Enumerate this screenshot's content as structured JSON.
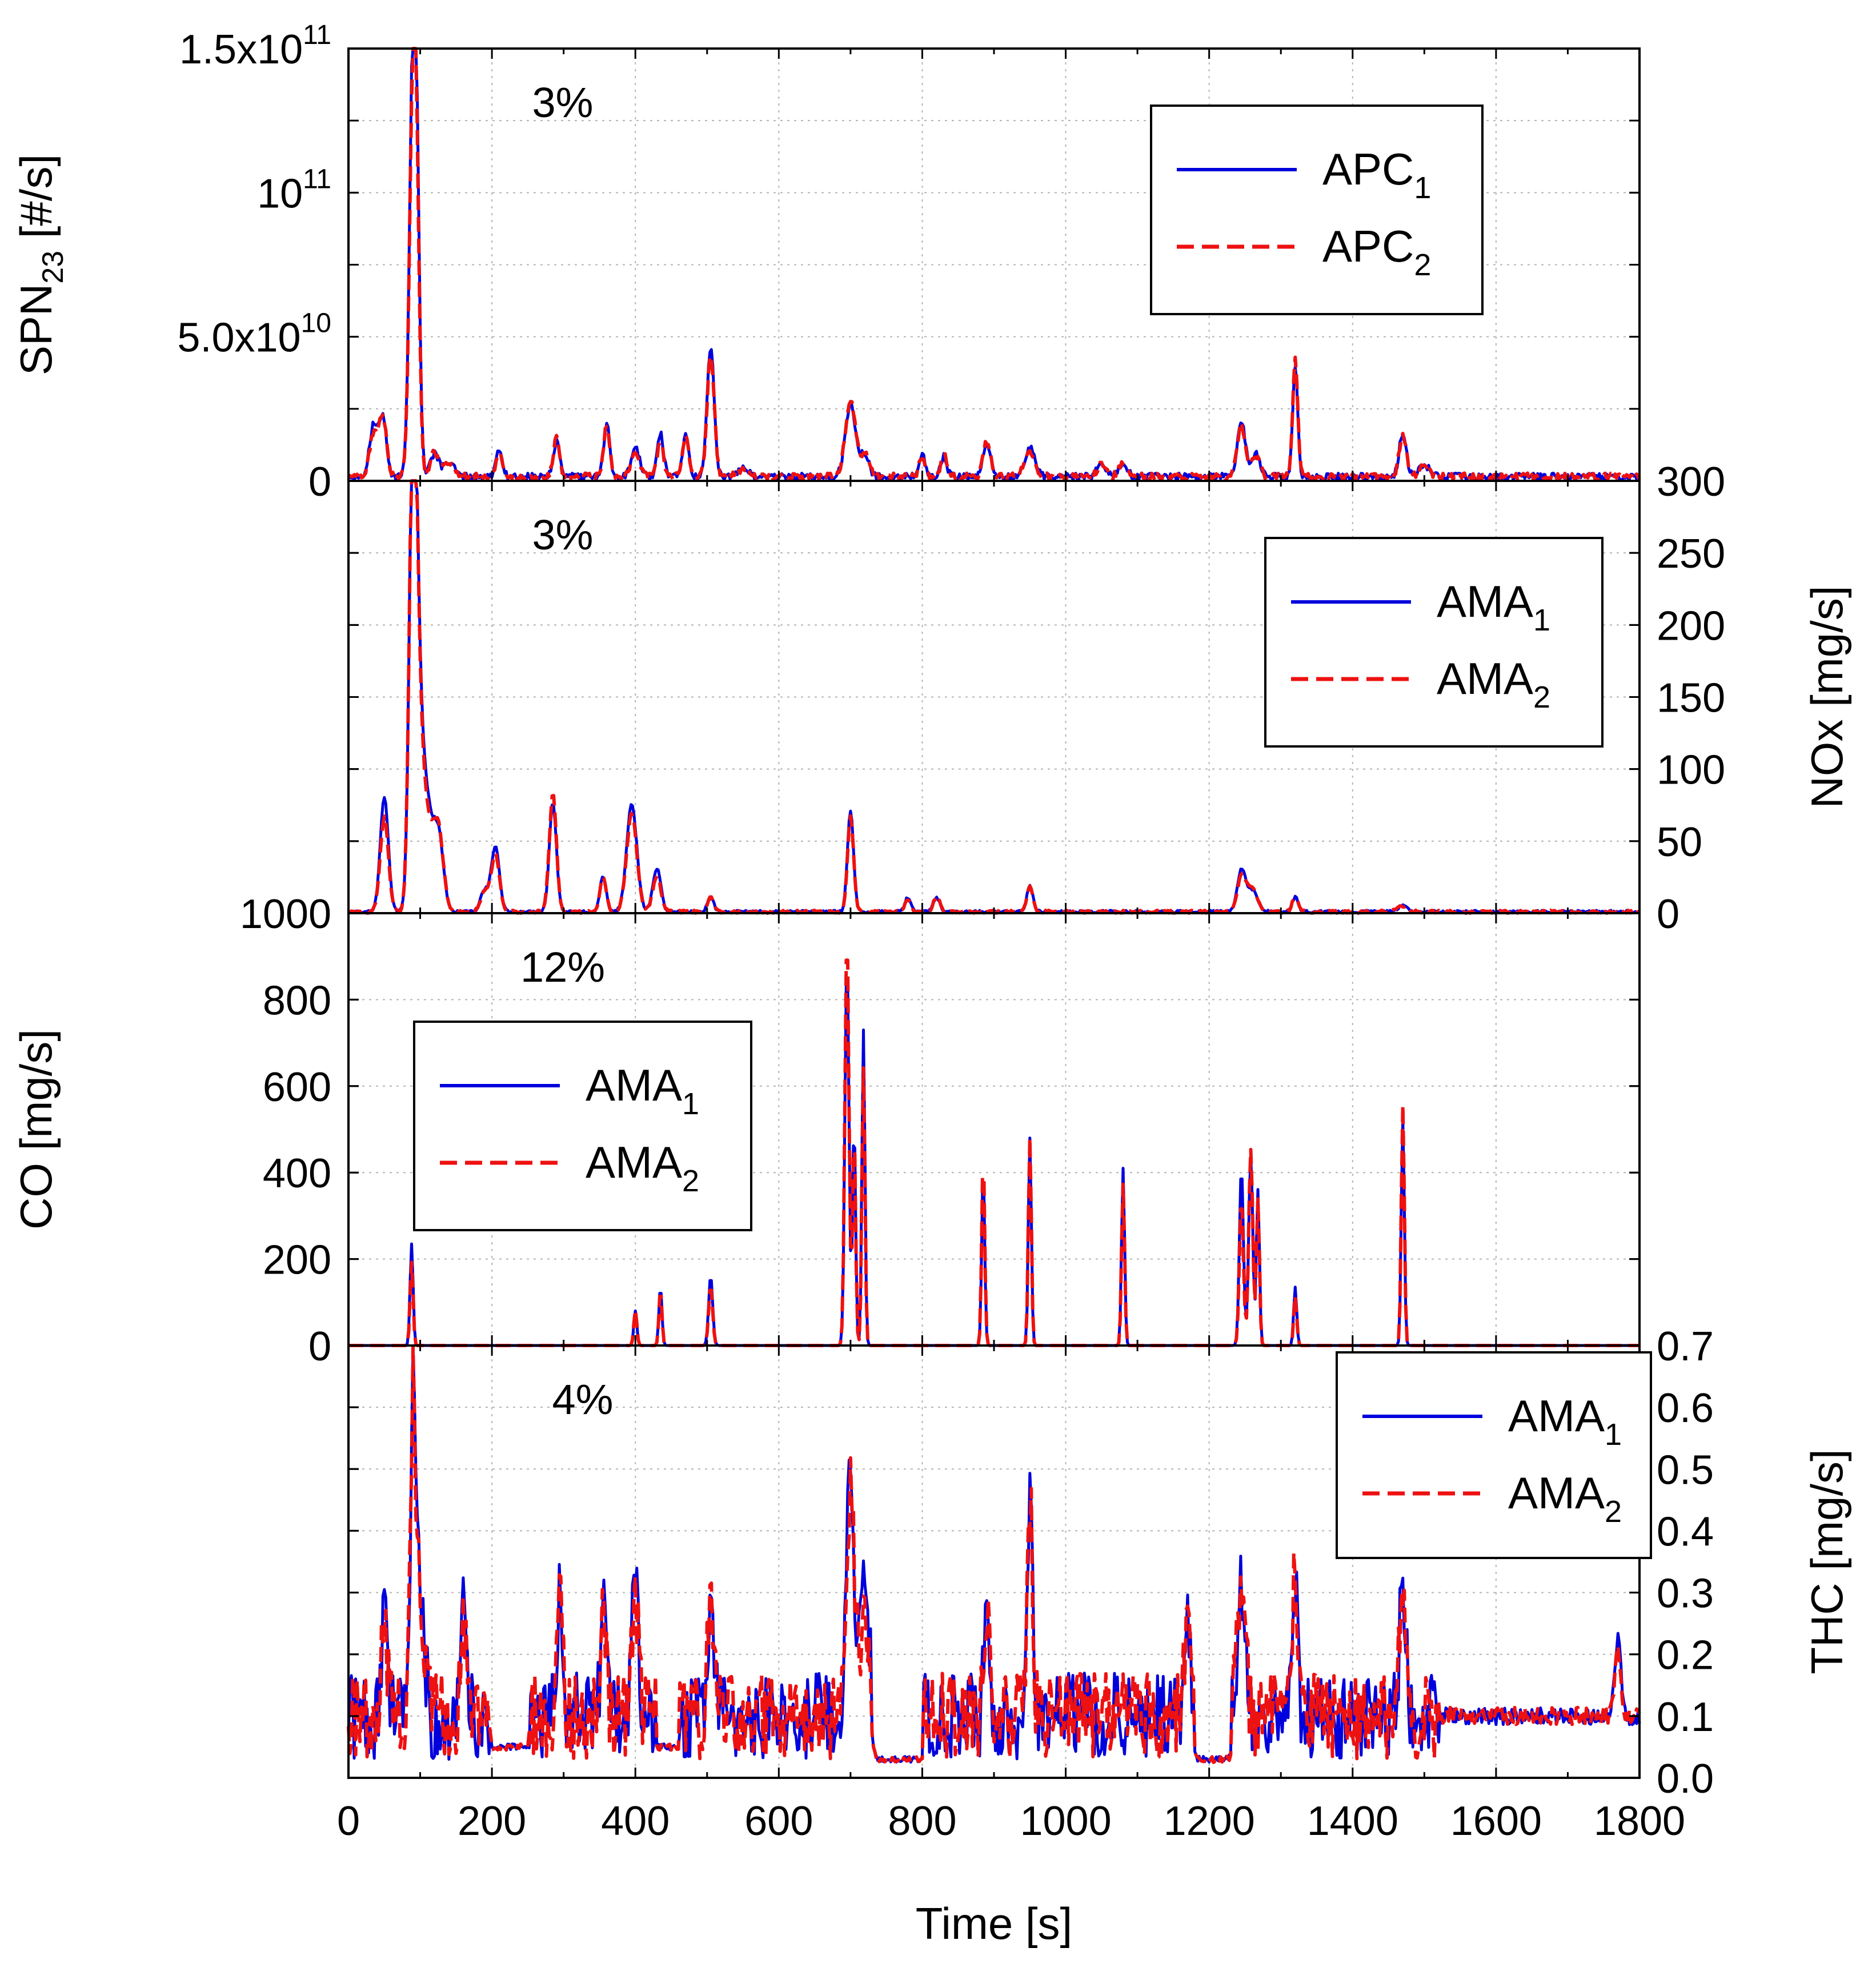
{
  "figure": {
    "x_label": "Time [s]",
    "x_ticks": [
      "0",
      "200",
      "400",
      "600",
      "800",
      "1000",
      "1200",
      "1400",
      "1600",
      "1800"
    ],
    "colors": {
      "series1": "#0000dd",
      "series2": "#ee1111",
      "grid": "#b4b4b4",
      "axis": "#000000"
    }
  },
  "chart_data": [
    {
      "type": "line",
      "name": "spn",
      "side": "left",
      "ylabel_main": "SPN",
      "ylabel_sub": "23",
      "ylabel_tail": " [#/s]",
      "ylim": [
        0,
        150000000000.0
      ],
      "grid_values": [
        25000000000.0,
        50000000000.0,
        75000000000.0,
        100000000000.0,
        125000000000.0
      ],
      "y_ticks": [
        {
          "value": 0,
          "base": "0",
          "exp": ""
        },
        {
          "value": 50000000000.0,
          "base": "5.0x10",
          "exp": "10"
        },
        {
          "value": 100000000000.0,
          "base": "10",
          "exp": "11"
        },
        {
          "value": 150000000000.0,
          "base": "1.5x10",
          "exp": "11"
        }
      ],
      "annotation": "3%",
      "legend": [
        {
          "label": "APC",
          "sub": "1",
          "style": "solid"
        },
        {
          "label": "APC",
          "sub": "2",
          "style": "dashed"
        }
      ],
      "baseline": 1500000000.0,
      "noise": 1200000000.0,
      "peaks": [
        [
          35,
          18000000000.0,
          8
        ],
        [
          48,
          20000000000.0,
          7
        ],
        [
          90,
          135000000000.0,
          7
        ],
        [
          95,
          70000000000.0,
          6
        ],
        [
          120,
          8000000000.0,
          8
        ],
        [
          140,
          5000000000.0,
          10
        ],
        [
          210,
          10000000000.0,
          6
        ],
        [
          290,
          12000000000.0,
          6
        ],
        [
          360,
          18000000000.0,
          6
        ],
        [
          400,
          10000000000.0,
          8
        ],
        [
          435,
          15000000000.0,
          6
        ],
        [
          470,
          14000000000.0,
          6
        ],
        [
          505,
          45000000000.0,
          7
        ],
        [
          550,
          3000000000.0,
          10
        ],
        [
          700,
          25000000000.0,
          10
        ],
        [
          720,
          8000000000.0,
          8
        ],
        [
          800,
          8000000000.0,
          6
        ],
        [
          830,
          7000000000.0,
          6
        ],
        [
          890,
          12000000000.0,
          7
        ],
        [
          950,
          10000000000.0,
          10
        ],
        [
          1050,
          5000000000.0,
          8
        ],
        [
          1080,
          5000000000.0,
          8
        ],
        [
          1245,
          19000000000.0,
          8
        ],
        [
          1265,
          8000000000.0,
          8
        ],
        [
          1320,
          38000000000.0,
          5
        ],
        [
          1470,
          15000000000.0,
          7
        ],
        [
          1500,
          4000000000.0,
          10
        ]
      ]
    },
    {
      "type": "line",
      "name": "nox",
      "side": "right",
      "ylabel_main": "NOx [mg/s]",
      "ylim": [
        0,
        300
      ],
      "grid_values": [
        50,
        100,
        150,
        200,
        250
      ],
      "y_ticks": [
        {
          "value": 0,
          "base": "0",
          "exp": ""
        },
        {
          "value": 50,
          "base": "50",
          "exp": ""
        },
        {
          "value": 100,
          "base": "100",
          "exp": ""
        },
        {
          "value": 150,
          "base": "150",
          "exp": ""
        },
        {
          "value": 200,
          "base": "200",
          "exp": ""
        },
        {
          "value": 250,
          "base": "250",
          "exp": ""
        },
        {
          "value": 300,
          "base": "300",
          "exp": ""
        }
      ],
      "annotation": "3%",
      "legend": [
        {
          "label": "AMA",
          "sub": "1",
          "style": "solid"
        },
        {
          "label": "AMA",
          "sub": "2",
          "style": "dashed"
        }
      ],
      "baseline": 1,
      "noise": 1,
      "peaks": [
        [
          50,
          80,
          8
        ],
        [
          90,
          275,
          7
        ],
        [
          96,
          150,
          10
        ],
        [
          110,
          60,
          10
        ],
        [
          125,
          55,
          10
        ],
        [
          190,
          15,
          8
        ],
        [
          205,
          45,
          8
        ],
        [
          285,
          75,
          7
        ],
        [
          355,
          25,
          6
        ],
        [
          395,
          75,
          10
        ],
        [
          430,
          30,
          8
        ],
        [
          505,
          10,
          6
        ],
        [
          700,
          70,
          6
        ],
        [
          780,
          10,
          6
        ],
        [
          820,
          10,
          6
        ],
        [
          950,
          18,
          6
        ],
        [
          1245,
          28,
          8
        ],
        [
          1260,
          15,
          10
        ],
        [
          1320,
          10,
          6
        ],
        [
          1470,
          4,
          10
        ]
      ]
    },
    {
      "type": "line",
      "name": "co",
      "side": "left",
      "ylabel_main": "CO [mg/s]",
      "ylim": [
        0,
        1000
      ],
      "grid_values": [
        200,
        400,
        600,
        800
      ],
      "y_ticks": [
        {
          "value": 0,
          "base": "0",
          "exp": ""
        },
        {
          "value": 200,
          "base": "200",
          "exp": ""
        },
        {
          "value": 400,
          "base": "400",
          "exp": ""
        },
        {
          "value": 600,
          "base": "600",
          "exp": ""
        },
        {
          "value": 800,
          "base": "800",
          "exp": ""
        },
        {
          "value": 1000,
          "base": "1000",
          "exp": ""
        }
      ],
      "annotation": "12%",
      "legend": [
        {
          "label": "AMA",
          "sub": "1",
          "style": "solid"
        },
        {
          "label": "AMA",
          "sub": "2",
          "style": "dashed"
        }
      ],
      "baseline": 0,
      "noise": 0,
      "peaks": [
        [
          88,
          235,
          3
        ],
        [
          400,
          80,
          3
        ],
        [
          435,
          135,
          3
        ],
        [
          505,
          160,
          4
        ],
        [
          695,
          895,
          4
        ],
        [
          705,
          510,
          3
        ],
        [
          718,
          730,
          3
        ],
        [
          885,
          400,
          3
        ],
        [
          950,
          480,
          3
        ],
        [
          1080,
          410,
          3
        ],
        [
          1245,
          410,
          4
        ],
        [
          1258,
          440,
          4
        ],
        [
          1268,
          360,
          3
        ],
        [
          1320,
          135,
          3
        ],
        [
          1470,
          525,
          3
        ]
      ]
    },
    {
      "type": "line",
      "name": "thc",
      "side": "right",
      "ylabel_main": "THC [mg/s]",
      "ylim": [
        0,
        0.7
      ],
      "grid_values": [
        0.1,
        0.2,
        0.3,
        0.4,
        0.5,
        0.6
      ],
      "y_ticks": [
        {
          "value": 0,
          "base": "0.0",
          "exp": ""
        },
        {
          "value": 0.1,
          "base": "0.1",
          "exp": ""
        },
        {
          "value": 0.2,
          "base": "0.2",
          "exp": ""
        },
        {
          "value": 0.3,
          "base": "0.3",
          "exp": ""
        },
        {
          "value": 0.4,
          "base": "0.4",
          "exp": ""
        },
        {
          "value": 0.5,
          "base": "0.5",
          "exp": ""
        },
        {
          "value": 0.6,
          "base": "0.6",
          "exp": ""
        },
        {
          "value": 0.7,
          "base": "0.7",
          "exp": ""
        }
      ],
      "annotation": "4%",
      "legend": [
        {
          "label": "AMA",
          "sub": "1",
          "style": "solid"
        },
        {
          "label": "AMA",
          "sub": "2",
          "style": "dashed"
        }
      ],
      "baseline": 0.1,
      "noise": 0.07,
      "peaks": [
        [
          50,
          0.2,
          5
        ],
        [
          90,
          0.48,
          5
        ],
        [
          100,
          0.22,
          8
        ],
        [
          160,
          0.16,
          6
        ],
        [
          295,
          0.22,
          5
        ],
        [
          355,
          0.18,
          5
        ],
        [
          400,
          0.23,
          6
        ],
        [
          505,
          0.2,
          6
        ],
        [
          700,
          0.38,
          8
        ],
        [
          720,
          0.2,
          8
        ],
        [
          890,
          0.2,
          5
        ],
        [
          950,
          0.35,
          5
        ],
        [
          1170,
          0.18,
          6
        ],
        [
          1245,
          0.22,
          8
        ],
        [
          1320,
          0.24,
          5
        ],
        [
          1470,
          0.22,
          6
        ],
        [
          1770,
          0.12,
          6
        ]
      ],
      "dips": [
        [
          200,
          250,
          0.05
        ],
        [
          430,
          460,
          0.05
        ],
        [
          730,
          800,
          0.03
        ],
        [
          1180,
          1230,
          0.03
        ]
      ]
    }
  ]
}
